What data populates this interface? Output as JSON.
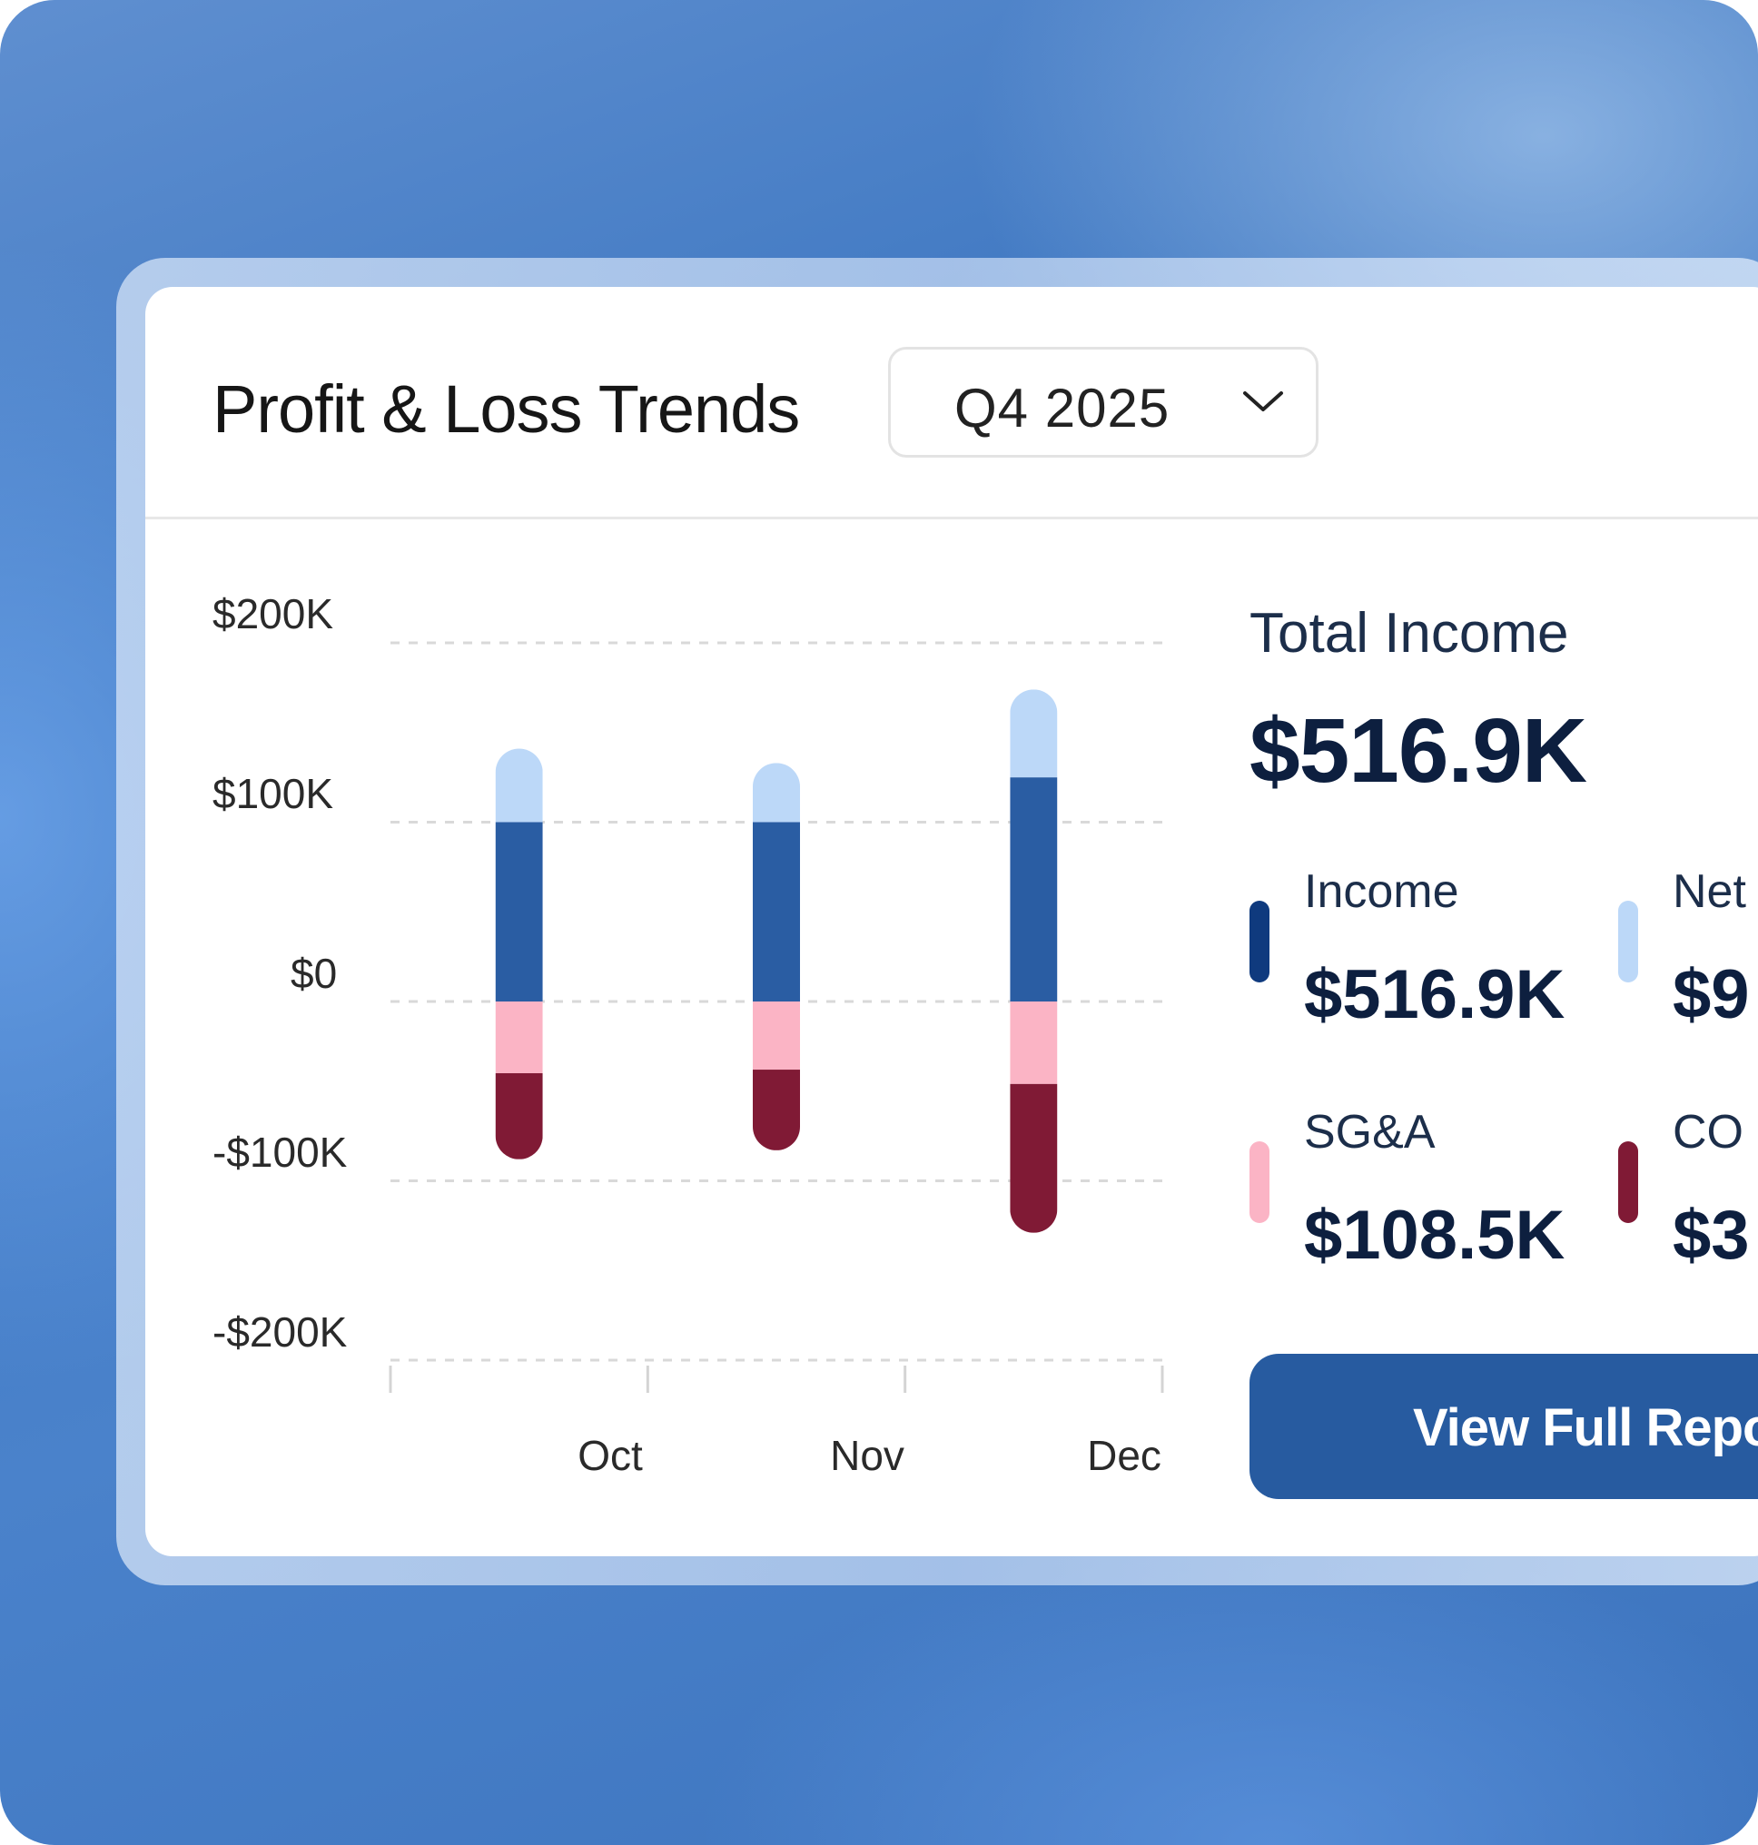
{
  "header": {
    "title": "Profit & Loss Trends"
  },
  "period_select": {
    "value": "Q4 2025"
  },
  "chart_data": {
    "type": "bar",
    "stacked": true,
    "categories": [
      "Oct",
      "Nov",
      "Dec"
    ],
    "y_ticks": [
      "$200K",
      "$100K",
      "$0",
      "-$100K",
      "-$200K"
    ],
    "ylim": [
      -200000,
      200000
    ],
    "grid": true,
    "series": [
      {
        "color": "#2a5da3",
        "values": [
          100000,
          100000,
          125000
        ]
      },
      {
        "color": "#bcd8f8",
        "values": [
          41000,
          33000,
          49000
        ]
      },
      {
        "color": "#fbb4c5",
        "values": [
          -40000,
          -38000,
          -46000
        ]
      },
      {
        "color": "#801a35",
        "values": [
          -48000,
          -45000,
          -83000
        ]
      }
    ]
  },
  "summary": {
    "total_label": "Total Income",
    "total_value": "$516.9K",
    "metrics": [
      {
        "label": "Income",
        "value": "$516.9K",
        "color": "#0f3a7e"
      },
      {
        "label": "Net",
        "value": "$9",
        "color": "#bcd8f8"
      },
      {
        "label": "SG&A",
        "value": "$108.5K",
        "color": "#fbb4c5"
      },
      {
        "label": "CO",
        "value": "$3",
        "color": "#801a35"
      }
    ]
  },
  "cta": {
    "label": "View Full Repo"
  }
}
